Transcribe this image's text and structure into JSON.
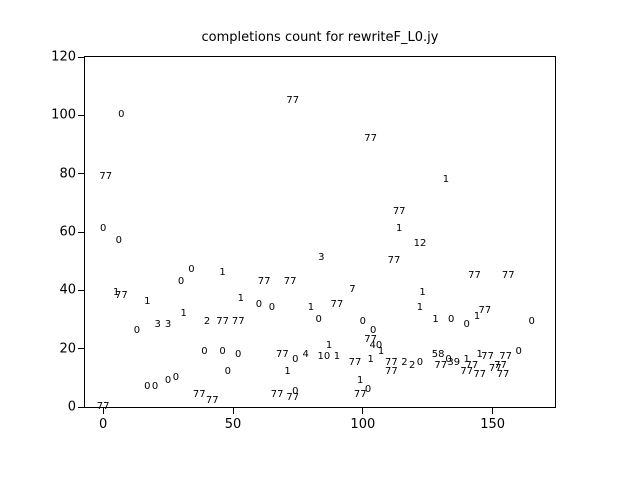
{
  "chart_data": {
    "type": "scatter",
    "title": "completions count for rewriteF_L0.jy",
    "xlabel": "",
    "ylabel": "",
    "marker_style": "text-label",
    "grid": false,
    "legend": null,
    "xlim": [
      -7,
      174
    ],
    "ylim": [
      0,
      120
    ],
    "x_ticks": [
      0,
      50,
      100,
      150
    ],
    "y_ticks": [
      0,
      20,
      40,
      60,
      80,
      100,
      120
    ],
    "colors": {
      "text": "#000000",
      "axis": "#000000",
      "background": "#ffffff"
    },
    "points_columns": [
      "x",
      "y",
      "label"
    ],
    "points": [
      [
        73,
        105,
        "77"
      ],
      [
        103,
        92,
        "77"
      ],
      [
        7,
        100,
        "0"
      ],
      [
        1,
        79,
        "77"
      ],
      [
        132,
        78,
        "1"
      ],
      [
        114,
        67,
        "77"
      ],
      [
        0,
        61,
        "0"
      ],
      [
        114,
        61,
        "1"
      ],
      [
        6,
        57,
        "0"
      ],
      [
        122,
        56,
        "12"
      ],
      [
        112,
        50,
        "77"
      ],
      [
        84,
        51,
        "3"
      ],
      [
        34,
        47,
        "0"
      ],
      [
        46,
        46,
        "1"
      ],
      [
        143,
        45,
        "77"
      ],
      [
        156,
        45,
        "77"
      ],
      [
        30,
        43,
        "0"
      ],
      [
        62,
        43,
        "77"
      ],
      [
        72,
        43,
        "77"
      ],
      [
        96,
        40,
        "7"
      ],
      [
        5,
        39,
        "1"
      ],
      [
        7,
        38,
        "77"
      ],
      [
        123,
        39,
        "1"
      ],
      [
        17,
        36,
        "1"
      ],
      [
        53,
        37,
        "1"
      ],
      [
        60,
        35,
        "0"
      ],
      [
        65,
        34,
        "0"
      ],
      [
        90,
        35,
        "77"
      ],
      [
        80,
        34,
        "1"
      ],
      [
        122,
        34,
        "1"
      ],
      [
        31,
        32,
        "1"
      ],
      [
        40,
        29,
        "2"
      ],
      [
        46,
        29,
        "77"
      ],
      [
        52,
        29,
        "77"
      ],
      [
        21,
        28,
        "3"
      ],
      [
        25,
        28,
        "3"
      ],
      [
        13,
        26,
        "0"
      ],
      [
        83,
        30,
        "0"
      ],
      [
        100,
        29,
        "0"
      ],
      [
        128,
        30,
        "1"
      ],
      [
        134,
        30,
        "0"
      ],
      [
        140,
        28,
        "0"
      ],
      [
        144,
        31,
        "1"
      ],
      [
        147,
        33,
        "77"
      ],
      [
        165,
        29,
        "0"
      ],
      [
        104,
        26,
        "0"
      ],
      [
        103,
        23,
        "77"
      ],
      [
        105,
        21,
        "40"
      ],
      [
        107,
        19,
        "1"
      ],
      [
        39,
        19,
        "0"
      ],
      [
        46,
        19,
        "0"
      ],
      [
        52,
        18,
        "0"
      ],
      [
        69,
        18,
        "77"
      ],
      [
        87,
        21,
        "1"
      ],
      [
        85,
        17,
        "10"
      ],
      [
        90,
        17,
        "1"
      ],
      [
        78,
        18,
        "4"
      ],
      [
        74,
        16,
        "0"
      ],
      [
        97,
        15,
        "77"
      ],
      [
        103,
        16,
        "1"
      ],
      [
        111,
        15,
        "77"
      ],
      [
        116,
        15,
        "2"
      ],
      [
        119,
        14,
        "2"
      ],
      [
        122,
        15,
        "0"
      ],
      [
        129,
        18,
        "58"
      ],
      [
        133,
        16,
        "0"
      ],
      [
        130,
        14,
        "77"
      ],
      [
        135,
        15,
        "39"
      ],
      [
        140,
        16,
        "1"
      ],
      [
        142,
        14,
        "77"
      ],
      [
        145,
        18,
        "1"
      ],
      [
        148,
        17,
        "77"
      ],
      [
        160,
        19,
        "0"
      ],
      [
        155,
        17,
        "77"
      ],
      [
        153,
        14,
        "77"
      ],
      [
        111,
        12,
        "77"
      ],
      [
        140,
        12,
        "77"
      ],
      [
        145,
        11,
        "77"
      ],
      [
        151,
        13,
        "77"
      ],
      [
        154,
        11,
        "77"
      ],
      [
        48,
        12,
        "0"
      ],
      [
        71,
        12,
        "1"
      ],
      [
        28,
        10,
        "0"
      ],
      [
        17,
        7,
        "0"
      ],
      [
        20,
        7,
        "0"
      ],
      [
        25,
        9,
        "0"
      ],
      [
        37,
        4,
        "77"
      ],
      [
        42,
        2,
        "77"
      ],
      [
        67,
        4,
        "77"
      ],
      [
        74,
        5,
        "0"
      ],
      [
        73,
        3,
        "77"
      ],
      [
        99,
        9,
        "1"
      ],
      [
        102,
        6,
        "0"
      ],
      [
        99,
        4,
        "77"
      ],
      [
        0,
        0,
        "77"
      ]
    ]
  }
}
